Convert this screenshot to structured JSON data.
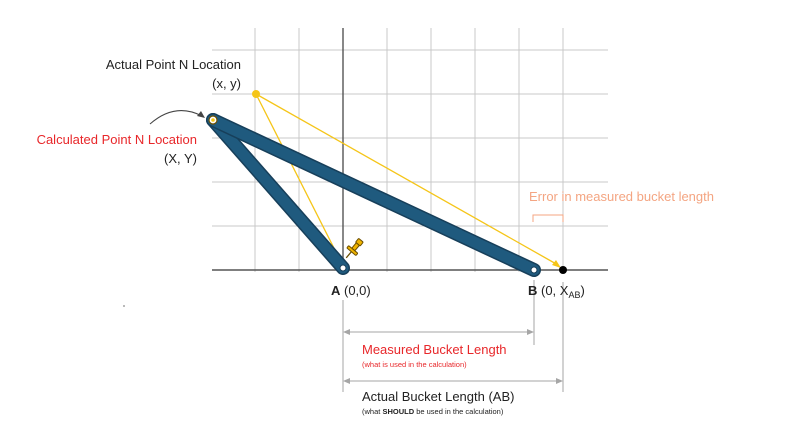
{
  "labels": {
    "actual_point_title": "Actual Point N Location",
    "actual_point_coords": "(x, y)",
    "calculated_point_title": "Calculated Point N Location",
    "calculated_point_coords": "(X, Y)",
    "error_label": "Error in measured bucket length",
    "point_a_letter": "A",
    "point_a_coords": " (0,0)",
    "point_b_letter": "B",
    "point_b_coords_prefix": " (0, X",
    "point_b_coords_sub": "AB",
    "point_b_coords_suffix": ")",
    "measured_title": "Measured Bucket Length",
    "measured_note": "(what is used in the calculation)",
    "actual_length_title": "Actual Bucket Length (AB)",
    "actual_note_prefix": "(what ",
    "actual_note_bold": "SHOULD",
    "actual_note_suffix": " be used in the calculation)"
  },
  "colors": {
    "link_fill": "#1f5a7e",
    "link_stroke": "#173f5a",
    "construction_line": "#f5c518",
    "grid": "#c8c8c8",
    "axis": "#555555",
    "red_text": "#e8272a",
    "error_text": "#f4a582",
    "text": "#222222",
    "dimension": "#a6a6a6",
    "pin_fill": "#f0b400",
    "pin_stroke": "#6b4e00"
  },
  "icons": {
    "pin": "push-pin-icon",
    "arrow": "curved-arrow-icon"
  }
}
